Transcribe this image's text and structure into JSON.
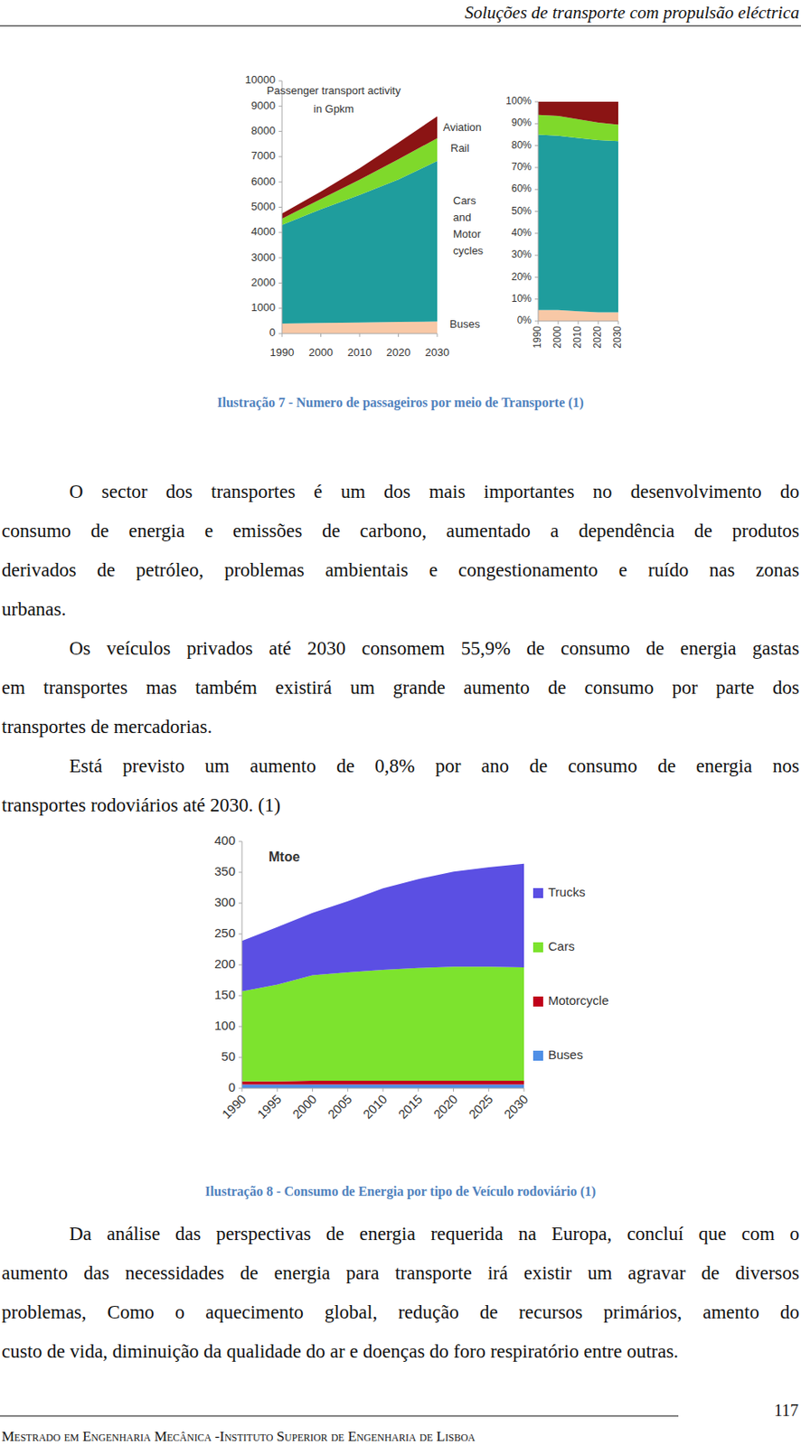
{
  "header": {
    "title": "Soluções de transporte com propulsão eléctrica"
  },
  "chart_data": [
    {
      "type": "area",
      "stacked": true,
      "title": "Passenger transport activity in Gpkm",
      "legend": "right",
      "x": [
        1990,
        2000,
        2010,
        2020,
        2030
      ],
      "xlim": [
        1990,
        2030
      ],
      "xticks": [
        1990,
        2000,
        2010,
        2020,
        2030
      ],
      "ylim": [
        0,
        10000
      ],
      "yticks": [
        0,
        1000,
        2000,
        3000,
        4000,
        5000,
        6000,
        7000,
        8000,
        9000,
        10000
      ],
      "series": [
        {
          "name": "Buses",
          "color": "#f8c8a6",
          "values": [
            400,
            420,
            440,
            460,
            480
          ]
        },
        {
          "name": "Cars and Motor cycles",
          "color": "#1f9d9d",
          "values": [
            3900,
            4500,
            5050,
            5640,
            6350
          ]
        },
        {
          "name": "Rail",
          "color": "#7fd92b",
          "values": [
            250,
            400,
            600,
            800,
            900
          ]
        },
        {
          "name": "Aviation",
          "color": "#8b1414",
          "values": [
            200,
            300,
            450,
            660,
            870
          ]
        }
      ]
    },
    {
      "type": "area",
      "stacked": true,
      "x": [
        1990,
        2000,
        2010,
        2020,
        2030
      ],
      "xlim": [
        1990,
        2030
      ],
      "xticks": [
        1990,
        2000,
        2010,
        2020,
        2030
      ],
      "ylim": [
        0,
        100
      ],
      "yticks": [
        {
          "value": 0,
          "label": "0%"
        },
        {
          "value": 10,
          "label": "10%"
        },
        {
          "value": 20,
          "label": "20%"
        },
        {
          "value": 30,
          "label": "30%"
        },
        {
          "value": 40,
          "label": "40%"
        },
        {
          "value": 50,
          "label": "50%"
        },
        {
          "value": 60,
          "label": "60%"
        },
        {
          "value": 70,
          "label": "70%"
        },
        {
          "value": 80,
          "label": "80%"
        },
        {
          "value": 90,
          "label": "90%"
        },
        {
          "value": 100,
          "label": "100%"
        }
      ],
      "series": [
        {
          "color": "#f8c8a6",
          "values": [
            5,
            5,
            4.5,
            4,
            4
          ]
        },
        {
          "color": "#1f9d9d",
          "values": [
            80,
            79.5,
            79,
            78.5,
            78
          ]
        },
        {
          "color": "#7fd92b",
          "values": [
            9,
            9,
            8.5,
            8,
            7.5
          ]
        },
        {
          "color": "#8b1414",
          "values": [
            6,
            6.5,
            8,
            9.5,
            10.5
          ]
        }
      ]
    },
    {
      "type": "area",
      "stacked": true,
      "title": "Mtoe",
      "legend": "right",
      "x": [
        1990,
        1995,
        2000,
        2005,
        2010,
        2015,
        2020,
        2025,
        2030
      ],
      "xlim": [
        1990,
        2030
      ],
      "xticks": [
        1990,
        1995,
        2000,
        2005,
        2010,
        2015,
        2020,
        2025,
        2030
      ],
      "ylim": [
        0,
        400
      ],
      "yticks": [
        0,
        50,
        100,
        150,
        200,
        250,
        300,
        350,
        400
      ],
      "series": [
        {
          "name": "Buses",
          "color": "#4f8fe6",
          "values": [
            6,
            6,
            6,
            6,
            6,
            6,
            6,
            6,
            6
          ]
        },
        {
          "name": "Motorcycle",
          "color": "#c0001a",
          "values": [
            5,
            5,
            6,
            6,
            6,
            6,
            6,
            6,
            6
          ]
        },
        {
          "name": "Cars",
          "color": "#7de32e",
          "values": [
            146,
            157,
            171,
            176,
            180,
            183,
            185,
            185,
            184
          ]
        },
        {
          "name": "Trucks",
          "color": "#5b4fe3",
          "values": [
            82,
            93,
            101,
            115,
            132,
            144,
            154,
            161,
            168
          ]
        }
      ]
    }
  ],
  "captions": [
    "Ilustração 7 - Numero de passageiros por meio de Transporte (1)",
    "Ilustração 8 - Consumo de Energia por tipo de Veículo rodoviário (1)"
  ],
  "paragraphs": [
    [
      "O sector dos transportes é um dos mais importantes no desenvolvimento do",
      "consumo de energia e emissões de carbono, aumentado a dependência de produtos",
      "derivados de petróleo, problemas ambientais e congestionamento e ruído nas zonas",
      "urbanas."
    ],
    [
      "Os veículos privados até 2030 consomem 55,9% de consumo de energia gastas",
      "em transportes mas também existirá um grande aumento de consumo por parte dos",
      "transportes de mercadorias."
    ],
    [
      "Está previsto um aumento de 0,8% por ano de consumo de energia nos",
      "transportes rodoviários até 2030. (1)"
    ],
    [
      "Da análise das perspectivas de energia requerida na Europa, concluí que com o",
      "aumento das necessidades de energia para transporte irá existir um agravar de diversos",
      "problemas, Como o aquecimento global, redução de recursos primários, amento do",
      "custo de vida, diminuição da qualidade do ar e doenças do foro respiratório entre outras."
    ]
  ],
  "footer": {
    "text": "Mestrado em Engenharia Mecânica -Instituto Superior de Engenharia de Lisboa",
    "page": 117
  }
}
